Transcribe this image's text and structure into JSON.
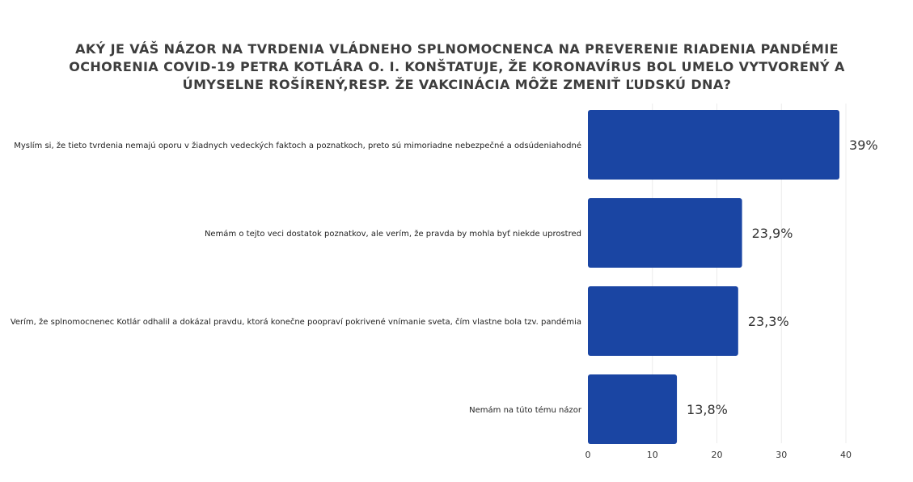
{
  "chart_data": {
    "type": "bar",
    "orientation": "horizontal",
    "title": "AKÝ JE VÁŠ NÁZOR NA TVRDENIA VLÁDNEHO SPLNOMOCNENCA NA PREVERENIE RIADENIA PANDÉMIE OCHORENIA COVID-19 PETRA KOTLÁRA O. I. KONŠTATUJE, ŽE KORONAVÍRUS BOL UMELO VYTVORENÝ A ÚMYSELNE ROŠÍRENÝ,RESP. ŽE VAKCINÁCIA MÔŽE ZMENIŤ ĽUDSKÚ DNA?",
    "categories": [
      "Myslím si, že tieto tvrdenia nemajú oporu v žiadnych vedeckých faktoch a poznatkoch, preto sú mimoriadne nebezpečné a odsúdeniahodné",
      "Nemám o tejto veci dostatok poznatkov, ale verím, že pravda by mohla byť niekde uprostred",
      "Verím, že splnomocnenec Kotlár odhalil a dokázal pravdu, ktorá konečne poopraví pokrivené vnímanie sveta, čím vlastne bola tzv. pandémia",
      "Nemám na túto tému názor"
    ],
    "values": [
      39,
      23.9,
      23.3,
      13.8
    ],
    "value_labels": [
      "39%",
      "23,9%",
      "23,3%",
      "13,8%"
    ],
    "xlim": [
      0,
      40
    ],
    "xticks": [
      0,
      10,
      20,
      30,
      40
    ],
    "xtick_labels": [
      "0",
      "10",
      "20",
      "30",
      "40"
    ],
    "grid": true,
    "bar_color": "#1a45a3"
  }
}
